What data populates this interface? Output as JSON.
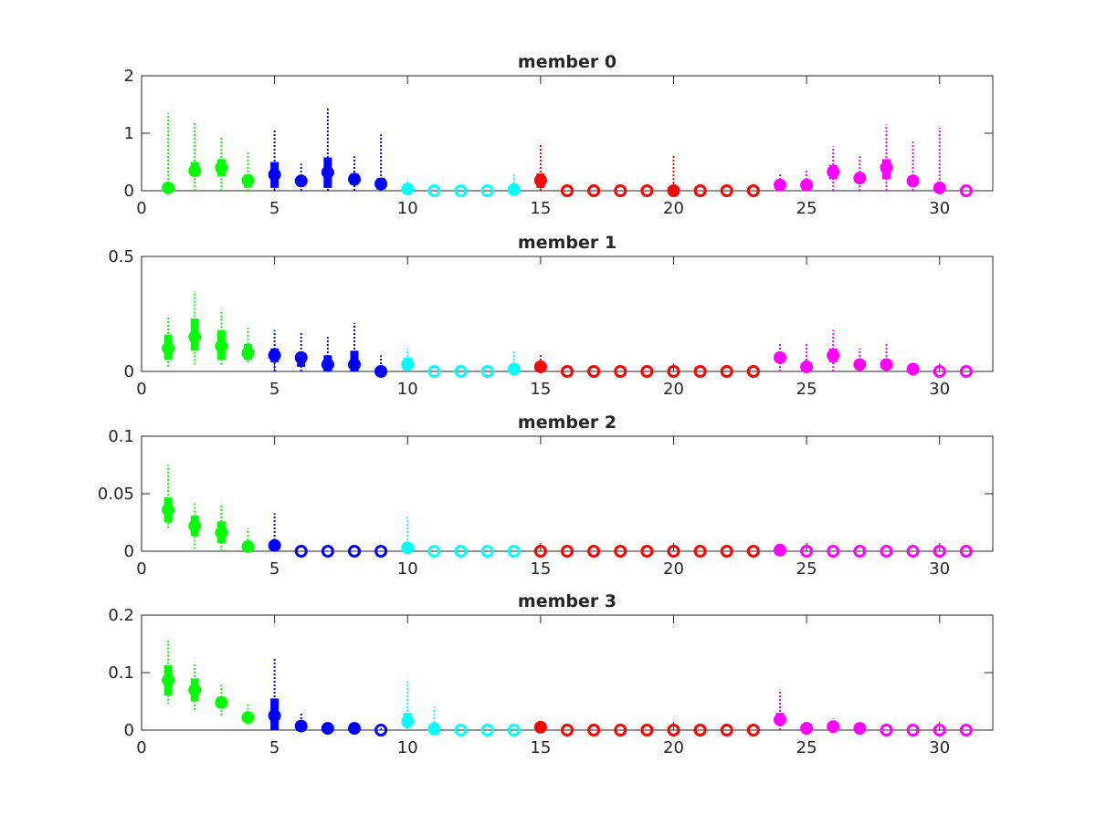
{
  "chart_data": [
    {
      "type": "box",
      "title": "member 0",
      "xlim": [
        0,
        32
      ],
      "ylim": [
        0,
        2
      ],
      "xticks": [
        "0",
        "5",
        "10",
        "15",
        "20",
        "25",
        "30"
      ],
      "yticks": [
        "0",
        "1",
        "2"
      ],
      "stats": [
        [
          0,
          0,
          0.05,
          0.1,
          1.35
        ],
        [
          0,
          0.25,
          0.35,
          0.5,
          1.2
        ],
        [
          0,
          0.25,
          0.4,
          0.55,
          0.93
        ],
        [
          0,
          0.05,
          0.18,
          0.28,
          0.67
        ],
        [
          0,
          0.05,
          0.28,
          0.5,
          1.08
        ],
        [
          0,
          0.08,
          0.17,
          0.25,
          0.47
        ],
        [
          0,
          0.05,
          0.32,
          0.58,
          1.43
        ],
        [
          0,
          0.1,
          0.2,
          0.3,
          0.6
        ],
        [
          0,
          0.02,
          0.12,
          0.22,
          0.98
        ],
        [
          0,
          0,
          0.03,
          0.05,
          0.2
        ],
        [
          0,
          0,
          0,
          0,
          0
        ],
        [
          0,
          0,
          0,
          0,
          0
        ],
        [
          0,
          0,
          0,
          0,
          0
        ],
        [
          0,
          0,
          0.02,
          0.03,
          0.28
        ],
        [
          0,
          0.05,
          0.18,
          0.3,
          0.82
        ],
        [
          0,
          0,
          0,
          0,
          0
        ],
        [
          0,
          0,
          0,
          0,
          0
        ],
        [
          0,
          0,
          0,
          0,
          0
        ],
        [
          0,
          0,
          0,
          0,
          0
        ],
        [
          0,
          0,
          0,
          0.02,
          0.62
        ],
        [
          0,
          0,
          0,
          0,
          0
        ],
        [
          0,
          0,
          0,
          0,
          0
        ],
        [
          0,
          0,
          0,
          0,
          0
        ],
        [
          0,
          0.05,
          0.1,
          0.15,
          0.3
        ],
        [
          0,
          0.05,
          0.1,
          0.15,
          0.37
        ],
        [
          0,
          0.2,
          0.33,
          0.45,
          0.77
        ],
        [
          0,
          0.15,
          0.22,
          0.3,
          0.63
        ],
        [
          0,
          0.2,
          0.4,
          0.55,
          1.15
        ],
        [
          0,
          0.08,
          0.17,
          0.25,
          0.87
        ],
        [
          0,
          0,
          0.05,
          0.1,
          1.1
        ],
        [
          0,
          0,
          0,
          0,
          0
        ]
      ]
    },
    {
      "type": "box",
      "title": "member 1",
      "xlim": [
        0,
        32
      ],
      "ylim": [
        0,
        0.5
      ],
      "xticks": [
        "0",
        "5",
        "10",
        "15",
        "20",
        "25",
        "30"
      ],
      "yticks": [
        "0",
        "0.5"
      ],
      "stats": [
        [
          0.02,
          0.05,
          0.1,
          0.16,
          0.24
        ],
        [
          0.03,
          0.09,
          0.15,
          0.23,
          0.35
        ],
        [
          0.03,
          0.05,
          0.11,
          0.18,
          0.27
        ],
        [
          0.04,
          0.05,
          0.08,
          0.12,
          0.19
        ],
        [
          0,
          0.04,
          0.07,
          0.1,
          0.18
        ],
        [
          0,
          0.02,
          0.06,
          0.08,
          0.17
        ],
        [
          0,
          0,
          0.03,
          0.07,
          0.15
        ],
        [
          0,
          0,
          0.03,
          0.09,
          0.21
        ],
        [
          0,
          0,
          0,
          0.02,
          0.07
        ],
        [
          0,
          0.01,
          0.03,
          0.06,
          0.1
        ],
        [
          0,
          0,
          0,
          0,
          0
        ],
        [
          0,
          0,
          0,
          0,
          0
        ],
        [
          0,
          0,
          0,
          0,
          0
        ],
        [
          0,
          0,
          0.01,
          0.02,
          0.09
        ],
        [
          0,
          0.01,
          0.02,
          0.04,
          0.08
        ],
        [
          0,
          0,
          0,
          0,
          0
        ],
        [
          0,
          0,
          0,
          0,
          0
        ],
        [
          0,
          0,
          0,
          0,
          0
        ],
        [
          0,
          0,
          0,
          0,
          0
        ],
        [
          0,
          0,
          0,
          0,
          0
        ],
        [
          0,
          0,
          0,
          0,
          0
        ],
        [
          0,
          0,
          0,
          0,
          0
        ],
        [
          0,
          0,
          0,
          0,
          0
        ],
        [
          0,
          0.04,
          0.06,
          0.08,
          0.12
        ],
        [
          0,
          0.01,
          0.02,
          0.04,
          0.12
        ],
        [
          0,
          0.04,
          0.07,
          0.1,
          0.18
        ],
        [
          0,
          0.01,
          0.03,
          0.05,
          0.1
        ],
        [
          0,
          0.01,
          0.03,
          0.05,
          0.12
        ],
        [
          0,
          0,
          0.01,
          0.01,
          0.03
        ],
        [
          0,
          0,
          0,
          0,
          0
        ],
        [
          0,
          0,
          0,
          0,
          0
        ]
      ]
    },
    {
      "type": "box",
      "title": "member 2",
      "xlim": [
        0,
        32
      ],
      "ylim": [
        0,
        0.1
      ],
      "xticks": [
        "0",
        "5",
        "10",
        "15",
        "20",
        "25",
        "30"
      ],
      "yticks": [
        "0",
        "0.05",
        "0.1"
      ],
      "stats": [
        [
          0.02,
          0.025,
          0.036,
          0.047,
          0.075
        ],
        [
          0.002,
          0.013,
          0.022,
          0.031,
          0.042
        ],
        [
          0,
          0.007,
          0.016,
          0.026,
          0.04
        ],
        [
          0,
          0.002,
          0.004,
          0.008,
          0.02
        ],
        [
          0,
          0.002,
          0.005,
          0.009,
          0.033
        ],
        [
          0,
          0,
          0,
          0,
          0
        ],
        [
          0,
          0,
          0,
          0,
          0
        ],
        [
          0,
          0,
          0,
          0,
          0
        ],
        [
          0,
          0,
          0,
          0,
          0
        ],
        [
          0,
          0,
          0.003,
          0.006,
          0.03
        ],
        [
          0,
          0,
          0,
          0,
          0
        ],
        [
          0,
          0,
          0,
          0,
          0
        ],
        [
          0,
          0,
          0,
          0,
          0
        ],
        [
          0,
          0,
          0,
          0,
          0
        ],
        [
          0,
          0,
          0,
          0,
          0
        ],
        [
          0,
          0,
          0,
          0,
          0
        ],
        [
          0,
          0,
          0,
          0,
          0
        ],
        [
          0,
          0,
          0,
          0,
          0
        ],
        [
          0,
          0,
          0,
          0,
          0
        ],
        [
          0,
          0,
          0,
          0,
          0
        ],
        [
          0,
          0,
          0,
          0,
          0
        ],
        [
          0,
          0,
          0,
          0,
          0
        ],
        [
          0,
          0,
          0,
          0,
          0
        ],
        [
          0,
          0,
          0.001,
          0.002,
          0.004
        ],
        [
          0,
          0,
          0,
          0,
          0
        ],
        [
          0,
          0,
          0,
          0,
          0
        ],
        [
          0,
          0,
          0,
          0,
          0
        ],
        [
          0,
          0,
          0,
          0,
          0
        ],
        [
          0,
          0,
          0,
          0,
          0
        ],
        [
          0,
          0,
          0,
          0,
          0
        ],
        [
          0,
          0,
          0,
          0,
          0
        ]
      ]
    },
    {
      "type": "box",
      "title": "member 3",
      "xlim": [
        0,
        32
      ],
      "ylim": [
        0,
        0.2
      ],
      "xticks": [
        "0",
        "5",
        "10",
        "15",
        "20",
        "25",
        "30"
      ],
      "yticks": [
        "0",
        "0.1",
        "0.2"
      ],
      "stats": [
        [
          0.045,
          0.06,
          0.087,
          0.113,
          0.157
        ],
        [
          0.035,
          0.05,
          0.07,
          0.09,
          0.118
        ],
        [
          0.025,
          0.038,
          0.048,
          0.058,
          0.08
        ],
        [
          0.01,
          0.015,
          0.022,
          0.028,
          0.047
        ],
        [
          0,
          0,
          0.025,
          0.055,
          0.125
        ],
        [
          0,
          0.002,
          0.007,
          0.012,
          0.03
        ],
        [
          0,
          0,
          0.003,
          0.005,
          0.01
        ],
        [
          0,
          0,
          0.003,
          0.005,
          0.01
        ],
        [
          0,
          0,
          0,
          0,
          0.003
        ],
        [
          0,
          0.005,
          0.015,
          0.03,
          0.085
        ],
        [
          0,
          0,
          0.002,
          0.004,
          0.04
        ],
        [
          0,
          0,
          0,
          0,
          0
        ],
        [
          0,
          0,
          0,
          0,
          0
        ],
        [
          0,
          0,
          0,
          0,
          0.003
        ],
        [
          0,
          0,
          0.005,
          0.008,
          0.01
        ],
        [
          0,
          0,
          0,
          0,
          0
        ],
        [
          0,
          0,
          0,
          0,
          0
        ],
        [
          0,
          0,
          0,
          0,
          0
        ],
        [
          0,
          0,
          0,
          0,
          0
        ],
        [
          0,
          0,
          0,
          0,
          0
        ],
        [
          0,
          0,
          0,
          0,
          0
        ],
        [
          0,
          0,
          0,
          0,
          0
        ],
        [
          0,
          0,
          0,
          0,
          0
        ],
        [
          0,
          0.01,
          0.018,
          0.03,
          0.07
        ],
        [
          0,
          0,
          0.003,
          0.005,
          0.01
        ],
        [
          0,
          0,
          0.006,
          0.01,
          0.02
        ],
        [
          0,
          0,
          0.003,
          0.005,
          0.01
        ],
        [
          0,
          0,
          0,
          0,
          0
        ],
        [
          0,
          0,
          0,
          0,
          0
        ],
        [
          0,
          0,
          0,
          0,
          0
        ],
        [
          0,
          0,
          0,
          0,
          0
        ]
      ]
    }
  ],
  "group_colors": [
    {
      "from": 1,
      "to": 4,
      "color": "#00ff00"
    },
    {
      "from": 5,
      "to": 9,
      "color": "#0000ff"
    },
    {
      "from": 10,
      "to": 14,
      "color": "#00ffff"
    },
    {
      "from": 15,
      "to": 23,
      "color": "#ff0000"
    },
    {
      "from": 24,
      "to": 31,
      "color": "#ff00ff"
    }
  ]
}
